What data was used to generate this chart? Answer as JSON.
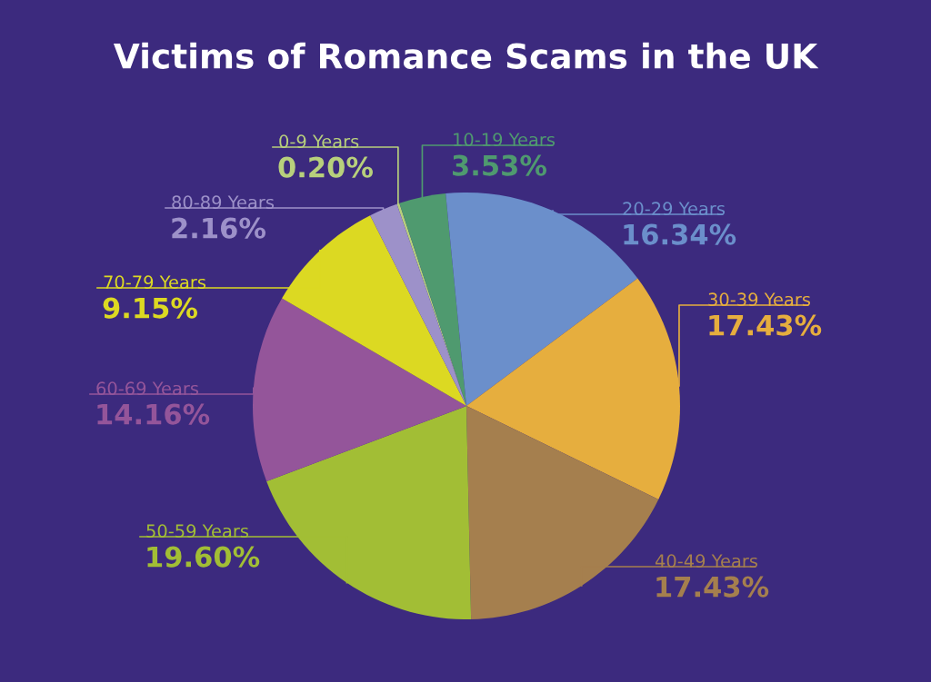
{
  "chart_data": {
    "type": "pie",
    "title": "Victims of Romance Scams in the UK",
    "categories": [
      "0-9 Years",
      "10-19 Years",
      "20-29 Years",
      "30-39 Years",
      "40-49 Years",
      "50-59 Years",
      "60-69 Years",
      "70-79 Years",
      "80-89 Years"
    ],
    "values": [
      0.2,
      3.53,
      16.34,
      17.43,
      17.43,
      19.6,
      14.16,
      9.15,
      2.16
    ],
    "value_labels": [
      "0.20%",
      "3.53%",
      "16.34%",
      "17.43%",
      "17.43%",
      "19.60%",
      "14.16%",
      "9.15%",
      "2.16%"
    ],
    "colors": [
      "#b8d07c",
      "#4f9a6f",
      "#6b8fcb",
      "#e6ae3e",
      "#a57f4e",
      "#a2be35",
      "#94559a",
      "#dcd922",
      "#9d91c9"
    ]
  }
}
